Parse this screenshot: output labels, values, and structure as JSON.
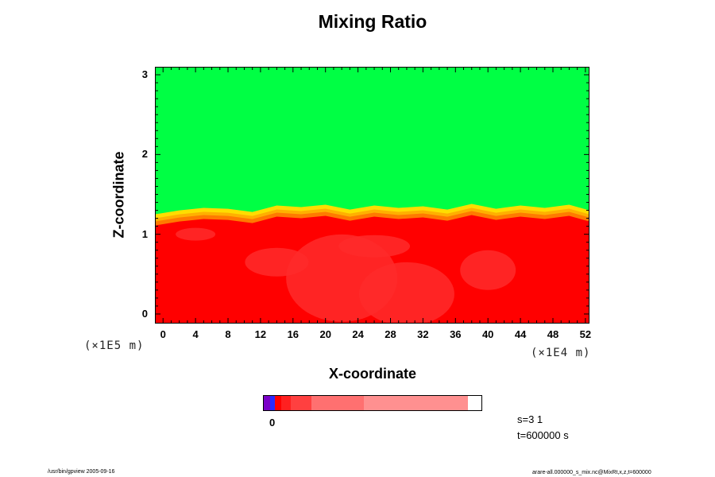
{
  "chart_data": {
    "type": "heatmap",
    "title": "Mixing Ratio",
    "xlabel": "X-coordinate",
    "ylabel": "Z-coordinate",
    "x_ticks": [
      "0",
      "4",
      "8",
      "12",
      "16",
      "20",
      "24",
      "28",
      "32",
      "36",
      "40",
      "44",
      "48",
      "52"
    ],
    "y_ticks": [
      "0",
      "1",
      "2",
      "3"
    ],
    "xlim": [
      -1,
      52.5
    ],
    "ylim": [
      -0.12,
      3.1
    ],
    "x_unit": "(×1E4 m)",
    "y_unit": "(×1E5 m)",
    "upper_layer_color": "#00ff44",
    "lower_layer_color": "#ff0000",
    "interface_colors": [
      "#ff7a00",
      "#ffb000",
      "#ffdd00"
    ],
    "interface_height": [
      {
        "x": -1,
        "z": 1.25
      },
      {
        "x": 2,
        "z": 1.3
      },
      {
        "x": 5,
        "z": 1.33
      },
      {
        "x": 8,
        "z": 1.32
      },
      {
        "x": 11,
        "z": 1.28
      },
      {
        "x": 14,
        "z": 1.36
      },
      {
        "x": 17,
        "z": 1.34
      },
      {
        "x": 20,
        "z": 1.37
      },
      {
        "x": 23,
        "z": 1.31
      },
      {
        "x": 26,
        "z": 1.36
      },
      {
        "x": 29,
        "z": 1.33
      },
      {
        "x": 32,
        "z": 1.35
      },
      {
        "x": 35,
        "z": 1.31
      },
      {
        "x": 38,
        "z": 1.38
      },
      {
        "x": 41,
        "z": 1.32
      },
      {
        "x": 44,
        "z": 1.36
      },
      {
        "x": 47,
        "z": 1.33
      },
      {
        "x": 50,
        "z": 1.37
      },
      {
        "x": 52.5,
        "z": 1.3
      }
    ],
    "colorbar": {
      "colors": [
        "#7a00c8",
        "#2a2aff",
        "#ff0000",
        "#ff2020",
        "#ff4040",
        "#ff7070",
        "#ff9090"
      ],
      "label": "0"
    }
  },
  "annotations": {
    "s_label": "s=3 1",
    "t_label": "t=600000 s"
  },
  "footer": {
    "left": "/usr/bin/gpview 2005-09-16",
    "right": "arare-all.000000_s_mix.nc@MixRt,x,z,t=600000"
  }
}
